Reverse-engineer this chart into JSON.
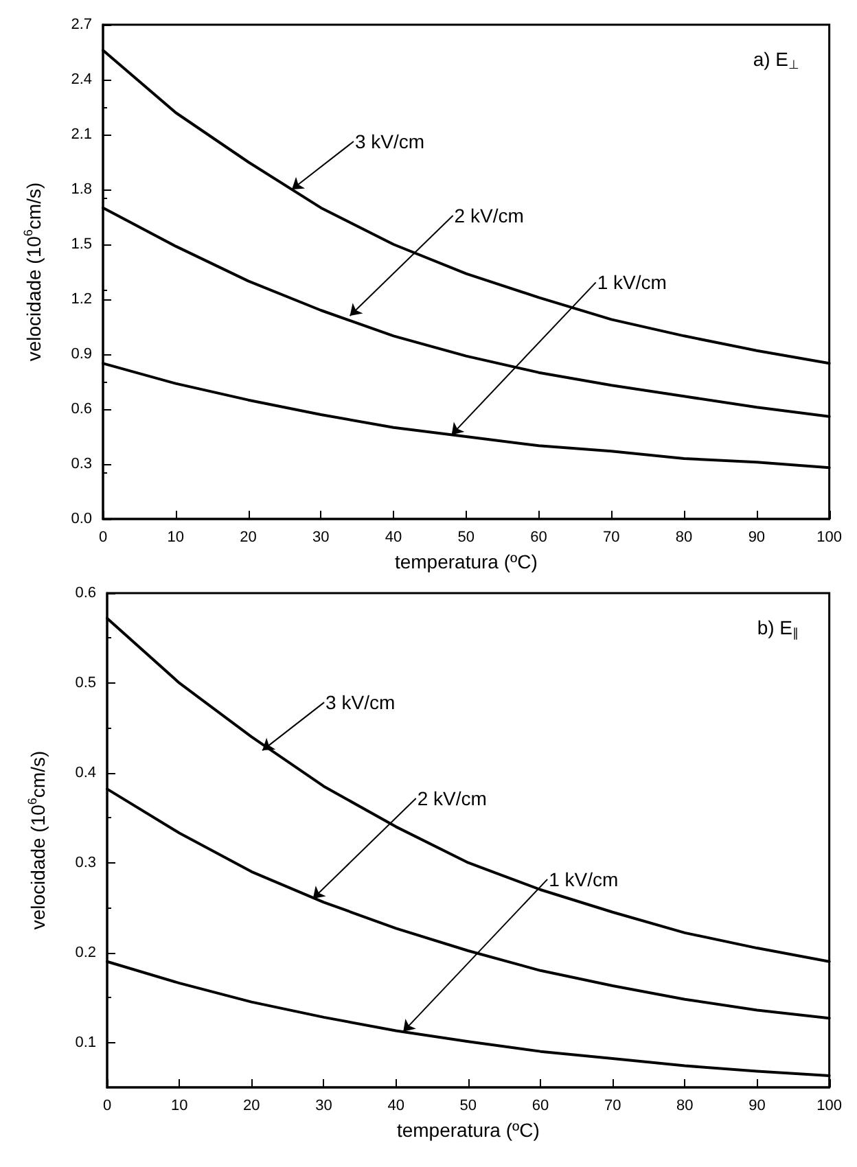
{
  "chart_data": [
    {
      "type": "line",
      "xlabel": "temperatura (ºC)",
      "ylabel": "velocidade (10$^{6}$cm/s)",
      "x": [
        0,
        10,
        20,
        30,
        40,
        50,
        60,
        70,
        80,
        90,
        100
      ],
      "xlim": [
        0,
        100
      ],
      "xticks": [
        0,
        10,
        20,
        30,
        40,
        50,
        60,
        70,
        80,
        90,
        100
      ],
      "ylim": [
        0,
        2.7
      ],
      "yticks": [
        {
          "value": 0,
          "label": "0.0"
        },
        0.3,
        0.6,
        0.9,
        1.2,
        1.5,
        1.8,
        2.1,
        2.4,
        2.7
      ],
      "line_style": "solid",
      "series": [
        {
          "color": "#000000",
          "values": [
            2.56,
            2.22,
            1.95,
            1.7,
            1.5,
            1.34,
            1.21,
            1.09,
            1.0,
            0.92,
            0.85
          ]
        },
        {
          "color": "#000000",
          "values": [
            1.7,
            1.49,
            1.3,
            1.14,
            1.0,
            0.89,
            0.8,
            0.73,
            0.67,
            0.61,
            0.56
          ]
        },
        {
          "color": "#000000",
          "values": [
            0.85,
            0.74,
            0.65,
            0.57,
            0.5,
            0.45,
            0.4,
            0.37,
            0.33,
            0.31,
            0.28
          ]
        }
      ],
      "annotations": [
        "a) E$_{⊥}$",
        {
          "text": "3 kV/cm",
          "x": 26,
          "y": 1.8
        },
        {
          "text": "2 kV/cm",
          "x": 34,
          "y": 1.11
        },
        {
          "text": "1 kV/cm",
          "x": 48,
          "y": 0.46
        }
      ]
    },
    {
      "type": "line",
      "xlabel": "temperatura (ºC)",
      "ylabel": "velocidade (10$^{6}$cm/s)",
      "x": [
        0,
        10,
        20,
        30,
        40,
        50,
        60,
        70,
        80,
        90,
        100
      ],
      "xlim": [
        0,
        100
      ],
      "xticks": [
        0,
        10,
        20,
        30,
        40,
        50,
        60,
        70,
        80,
        90,
        100
      ],
      "ylim": [
        0.05,
        0.6
      ],
      "yticks": [
        0.1,
        0.2,
        0.3,
        0.4,
        0.5,
        0.6
      ],
      "line_style": "solid",
      "series": [
        {
          "color": "#000000",
          "values": [
            0.572,
            0.5,
            0.44,
            0.385,
            0.34,
            0.3,
            0.27,
            0.245,
            0.222,
            0.205,
            0.19
          ]
        },
        {
          "color": "#000000",
          "values": [
            0.382,
            0.333,
            0.29,
            0.256,
            0.227,
            0.202,
            0.18,
            0.163,
            0.148,
            0.136,
            0.127
          ]
        },
        {
          "color": "#000000",
          "values": [
            0.19,
            0.166,
            0.145,
            0.128,
            0.113,
            0.101,
            0.09,
            0.082,
            0.074,
            0.068,
            0.063
          ]
        }
      ],
      "annotations": [
        "b) E$_{∥}$",
        {
          "text": "3 kV/cm",
          "x": 21.5,
          "y": 0.425
        },
        {
          "text": "2 kV/cm",
          "x": 28.5,
          "y": 0.26
        },
        {
          "text": "1 kV/cm",
          "x": 41,
          "y": 0.112
        }
      ]
    }
  ]
}
